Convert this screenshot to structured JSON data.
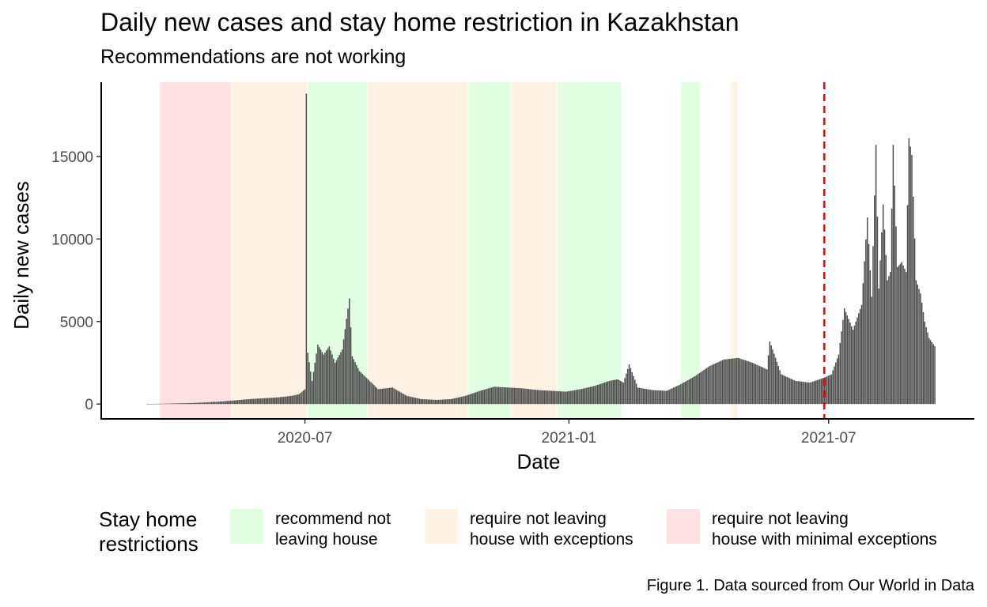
{
  "title": "Daily new cases and stay home restriction in Kazakhstan",
  "subtitle": "Recommendations are not working",
  "caption": "Figure 1. Data sourced from Our World in Data",
  "legend": {
    "title_line1": "Stay home",
    "title_line2": "restrictions",
    "items": [
      {
        "line1": "recommend not",
        "line2": "leaving house",
        "color": "#e3ffe3"
      },
      {
        "line1": "require not leaving",
        "line2": "house with exceptions",
        "color": "#fef2e4"
      },
      {
        "line1": "require not leaving",
        "line2": "house with minimal exceptions",
        "color": "#ffe1e4"
      }
    ]
  },
  "chart_data": {
    "type": "bar",
    "xlabel": "Date",
    "ylabel": "Daily new cases",
    "x_start": "2020-03-13",
    "x_end": "2021-09-13",
    "x_ticks": [
      "2020-07-01",
      "2021-01-01",
      "2021-07-01"
    ],
    "x_tick_labels": [
      "2020-07",
      "2021-01",
      "2021-07"
    ],
    "y_ticks": [
      0,
      5000,
      10000,
      15000
    ],
    "y_tick_labels": [
      "0",
      "5000",
      "10000",
      "15000"
    ],
    "ylim": [
      -900,
      19500
    ],
    "bar_color": "#4d4d4d",
    "reference_line": {
      "date": "2021-06-28",
      "color": "#ff0000",
      "style": "dashed"
    },
    "restriction_periods": [
      {
        "start": "2020-03-22",
        "end": "2020-05-11",
        "level": "require not leaving house with minimal exceptions"
      },
      {
        "start": "2020-05-11",
        "end": "2020-07-03",
        "level": "require not leaving house with exceptions"
      },
      {
        "start": "2020-07-03",
        "end": "2020-08-14",
        "level": "recommend not leaving house"
      },
      {
        "start": "2020-08-14",
        "end": "2020-10-23",
        "level": "require not leaving house with exceptions"
      },
      {
        "start": "2020-10-23",
        "end": "2020-11-22",
        "level": "recommend not leaving house"
      },
      {
        "start": "2020-11-22",
        "end": "2020-12-24",
        "level": "require not leaving house with exceptions"
      },
      {
        "start": "2020-12-24",
        "end": "2021-02-07",
        "level": "recommend not leaving house"
      },
      {
        "start": "2021-03-20",
        "end": "2021-04-03",
        "level": "recommend not leaving house"
      },
      {
        "start": "2021-04-24",
        "end": "2021-04-29",
        "level": "require not leaving house with exceptions"
      }
    ],
    "series": [
      {
        "values": [
          {
            "date": "2020-03-13",
            "value": 6
          },
          {
            "date": "2020-03-24",
            "value": 20
          },
          {
            "date": "2020-04-03",
            "value": 40
          },
          {
            "date": "2020-04-13",
            "value": 60
          },
          {
            "date": "2020-04-23",
            "value": 100
          },
          {
            "date": "2020-05-03",
            "value": 150
          },
          {
            "date": "2020-05-13",
            "value": 220
          },
          {
            "date": "2020-05-23",
            "value": 300
          },
          {
            "date": "2020-06-02",
            "value": 350
          },
          {
            "date": "2020-06-12",
            "value": 400
          },
          {
            "date": "2020-06-22",
            "value": 500
          },
          {
            "date": "2020-06-27",
            "value": 600
          },
          {
            "date": "2020-07-01",
            "value": 900
          },
          {
            "date": "2020-07-02",
            "value": 18800
          },
          {
            "date": "2020-07-03",
            "value": 3100
          },
          {
            "date": "2020-07-06",
            "value": 1400
          },
          {
            "date": "2020-07-10",
            "value": 3600
          },
          {
            "date": "2020-07-14",
            "value": 3000
          },
          {
            "date": "2020-07-18",
            "value": 3500
          },
          {
            "date": "2020-07-22",
            "value": 2500
          },
          {
            "date": "2020-07-27",
            "value": 3300
          },
          {
            "date": "2020-08-01",
            "value": 6400
          },
          {
            "date": "2020-08-03",
            "value": 2900
          },
          {
            "date": "2020-08-08",
            "value": 2000
          },
          {
            "date": "2020-08-14",
            "value": 1500
          },
          {
            "date": "2020-08-21",
            "value": 900
          },
          {
            "date": "2020-08-31",
            "value": 1000
          },
          {
            "date": "2020-09-10",
            "value": 500
          },
          {
            "date": "2020-09-20",
            "value": 300
          },
          {
            "date": "2020-10-01",
            "value": 250
          },
          {
            "date": "2020-10-11",
            "value": 300
          },
          {
            "date": "2020-10-21",
            "value": 500
          },
          {
            "date": "2020-10-31",
            "value": 800
          },
          {
            "date": "2020-11-10",
            "value": 1050
          },
          {
            "date": "2020-11-20",
            "value": 1000
          },
          {
            "date": "2020-11-30",
            "value": 950
          },
          {
            "date": "2020-12-10",
            "value": 850
          },
          {
            "date": "2020-12-20",
            "value": 800
          },
          {
            "date": "2020-12-30",
            "value": 750
          },
          {
            "date": "2021-01-09",
            "value": 900
          },
          {
            "date": "2021-01-19",
            "value": 1100
          },
          {
            "date": "2021-01-29",
            "value": 1400
          },
          {
            "date": "2021-02-04",
            "value": 1500
          },
          {
            "date": "2021-02-08",
            "value": 1300
          },
          {
            "date": "2021-02-12",
            "value": 2400
          },
          {
            "date": "2021-02-18",
            "value": 1000
          },
          {
            "date": "2021-02-28",
            "value": 850
          },
          {
            "date": "2021-03-10",
            "value": 800
          },
          {
            "date": "2021-03-20",
            "value": 1200
          },
          {
            "date": "2021-03-30",
            "value": 1700
          },
          {
            "date": "2021-04-09",
            "value": 2300
          },
          {
            "date": "2021-04-19",
            "value": 2700
          },
          {
            "date": "2021-04-29",
            "value": 2800
          },
          {
            "date": "2021-05-09",
            "value": 2500
          },
          {
            "date": "2021-05-19",
            "value": 2100
          },
          {
            "date": "2021-05-21",
            "value": 3800
          },
          {
            "date": "2021-05-29",
            "value": 1800
          },
          {
            "date": "2021-06-08",
            "value": 1400
          },
          {
            "date": "2021-06-18",
            "value": 1300
          },
          {
            "date": "2021-06-28",
            "value": 1600
          },
          {
            "date": "2021-07-03",
            "value": 1800
          },
          {
            "date": "2021-07-08",
            "value": 3000
          },
          {
            "date": "2021-07-12",
            "value": 5800
          },
          {
            "date": "2021-07-18",
            "value": 4500
          },
          {
            "date": "2021-07-24",
            "value": 6000
          },
          {
            "date": "2021-07-28",
            "value": 11300
          },
          {
            "date": "2021-07-31",
            "value": 6500
          },
          {
            "date": "2021-08-03",
            "value": 15700
          },
          {
            "date": "2021-08-05",
            "value": 7000
          },
          {
            "date": "2021-08-08",
            "value": 12100
          },
          {
            "date": "2021-08-11",
            "value": 7500
          },
          {
            "date": "2021-08-13",
            "value": 8000
          },
          {
            "date": "2021-08-15",
            "value": 15700
          },
          {
            "date": "2021-08-18",
            "value": 8300
          },
          {
            "date": "2021-08-21",
            "value": 8600
          },
          {
            "date": "2021-08-24",
            "value": 8000
          },
          {
            "date": "2021-08-26",
            "value": 16100
          },
          {
            "date": "2021-08-28",
            "value": 15100
          },
          {
            "date": "2021-08-31",
            "value": 7500
          },
          {
            "date": "2021-09-03",
            "value": 6700
          },
          {
            "date": "2021-09-06",
            "value": 5000
          },
          {
            "date": "2021-09-09",
            "value": 4000
          },
          {
            "date": "2021-09-13",
            "value": 3500
          }
        ]
      }
    ]
  }
}
